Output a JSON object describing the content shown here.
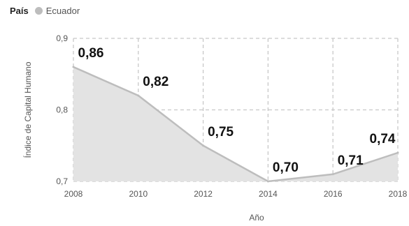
{
  "chart_data": {
    "type": "area",
    "legend": {
      "title": "País",
      "items": [
        {
          "label": "Ecuador",
          "color": "#bdbdbd"
        }
      ]
    },
    "x": [
      2008,
      2010,
      2012,
      2014,
      2016,
      2018
    ],
    "series": [
      {
        "name": "Ecuador",
        "values": [
          0.86,
          0.82,
          0.75,
          0.7,
          0.71,
          0.74
        ]
      }
    ],
    "data_labels": [
      "0,86",
      "0,82",
      "0,75",
      "0,70",
      "0,71",
      "0,74"
    ],
    "x_tick_labels": [
      "2008",
      "2010",
      "2012",
      "2014",
      "2016",
      "2018"
    ],
    "y_ticks": [
      0.7,
      0.8,
      0.9
    ],
    "y_tick_labels": [
      "0,7",
      "0,8",
      "0,9"
    ],
    "xlabel": "Año",
    "ylabel": "Índice de Capital Humano",
    "xlim": [
      2008,
      2018
    ],
    "ylim": [
      0.7,
      0.9
    ],
    "grid": true,
    "colors": {
      "area_fill": "#e3e3e3",
      "line": "#bdbdbd",
      "grid": "#c8c8c8"
    }
  }
}
